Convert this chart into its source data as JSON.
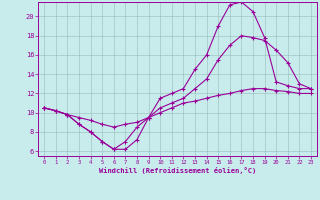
{
  "xlabel": "Windchill (Refroidissement éolien,°C)",
  "bg_color": "#c8ecec",
  "line_color": "#990099",
  "grid_color": "#99bbbb",
  "xlim": [
    -0.5,
    23.5
  ],
  "ylim": [
    5.5,
    21.5
  ],
  "xticks": [
    0,
    1,
    2,
    3,
    4,
    5,
    6,
    7,
    8,
    9,
    10,
    11,
    12,
    13,
    14,
    15,
    16,
    17,
    18,
    19,
    20,
    21,
    22,
    23
  ],
  "yticks": [
    6,
    8,
    10,
    12,
    14,
    16,
    18,
    20
  ],
  "line1_x": [
    0,
    1,
    2,
    3,
    4,
    5,
    6,
    7,
    8,
    9,
    10,
    11,
    12,
    13,
    14,
    15,
    16,
    17,
    18,
    19,
    20,
    21,
    22,
    23
  ],
  "line1_y": [
    10.5,
    10.2,
    9.8,
    8.8,
    8.0,
    7.0,
    6.2,
    6.2,
    7.2,
    9.5,
    11.5,
    12.0,
    12.5,
    14.5,
    16.0,
    19.0,
    21.2,
    21.5,
    20.5,
    17.8,
    13.2,
    12.8,
    12.5,
    12.5
  ],
  "line2_x": [
    0,
    1,
    2,
    3,
    4,
    5,
    6,
    7,
    8,
    9,
    10,
    11,
    12,
    13,
    14,
    15,
    16,
    17,
    18,
    19,
    20,
    21,
    22,
    23
  ],
  "line2_y": [
    10.5,
    10.2,
    9.8,
    8.8,
    8.0,
    7.0,
    6.2,
    7.0,
    8.5,
    9.5,
    10.5,
    11.0,
    11.5,
    12.5,
    13.5,
    15.5,
    17.0,
    18.0,
    17.8,
    17.5,
    16.5,
    15.2,
    13.0,
    12.5
  ],
  "line3_x": [
    0,
    1,
    2,
    3,
    4,
    5,
    6,
    7,
    8,
    9,
    10,
    11,
    12,
    13,
    14,
    15,
    16,
    17,
    18,
    19,
    20,
    21,
    22,
    23
  ],
  "line3_y": [
    10.5,
    10.2,
    9.8,
    9.5,
    9.2,
    8.8,
    8.5,
    8.8,
    9.0,
    9.5,
    10.0,
    10.5,
    11.0,
    11.2,
    11.5,
    11.8,
    12.0,
    12.3,
    12.5,
    12.5,
    12.3,
    12.2,
    12.0,
    12.0
  ]
}
